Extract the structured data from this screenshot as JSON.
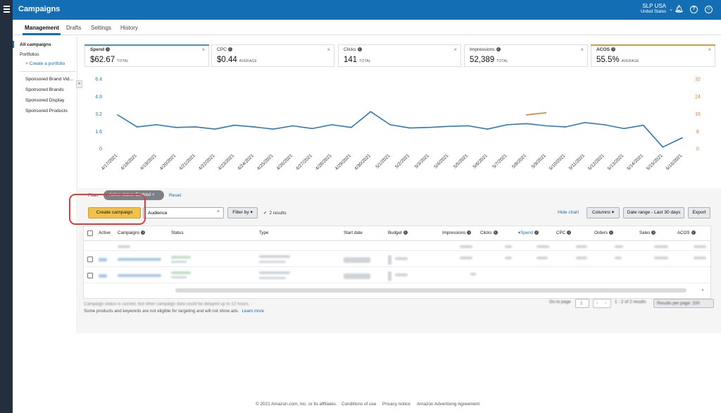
{
  "app": {
    "title": "Campaigns"
  },
  "account": {
    "name": "SLP USA",
    "region": "United States"
  },
  "tabs": [
    {
      "label": "Management"
    },
    {
      "label": "Drafts"
    },
    {
      "label": "Settings"
    },
    {
      "label": "History"
    }
  ],
  "sidebar": {
    "all_campaigns": "All campaigns",
    "portfolios": "Portfolios",
    "create_portfolio": "+ Create a portfolio",
    "items": [
      "Sponsored Brand Vid...",
      "Sponsored Brands",
      "Sponsored Display",
      "Sponsored Products"
    ]
  },
  "metrics": [
    {
      "label": "Spend",
      "value": "$62.67",
      "unit": "TOTAL",
      "color": "#1f77b4"
    },
    {
      "label": "CPC",
      "value": "$0.44",
      "unit": "AVERAGE",
      "color": ""
    },
    {
      "label": "Clicks",
      "value": "141",
      "unit": "TOTAL",
      "color": ""
    },
    {
      "label": "Impressions",
      "value": "52,389",
      "unit": "TOTAL",
      "color": ""
    },
    {
      "label": "ACOS",
      "value": "55.5%",
      "unit": "AVERAGE",
      "color": "#e07b19"
    }
  ],
  "chart_data": {
    "type": "line",
    "x": [
      "4/17/2021",
      "4/18/2021",
      "4/19/2021",
      "4/20/2021",
      "4/21/2021",
      "4/22/2021",
      "4/23/2021",
      "4/24/2021",
      "4/25/2021",
      "4/26/2021",
      "4/27/2021",
      "4/28/2021",
      "4/29/2021",
      "4/30/2021",
      "5/1/2021",
      "5/2/2021",
      "5/3/2021",
      "5/4/2021",
      "5/5/2021",
      "5/6/2021",
      "5/7/2021",
      "5/8/2021",
      "5/9/2021",
      "5/10/2021",
      "5/11/2021",
      "5/12/2021",
      "5/13/2021",
      "5/14/2021",
      "5/15/2021",
      "5/16/2021"
    ],
    "left_axis": {
      "ticks": [
        "6.4",
        "4.8",
        "3.2",
        "1.6",
        "0"
      ],
      "ylim": [
        0,
        6.4
      ],
      "color": "#1f77b4"
    },
    "right_axis": {
      "ticks": [
        "32",
        "24",
        "16",
        "8",
        "0"
      ],
      "ylim": [
        0,
        32
      ],
      "color": "#e07b19"
    },
    "series": [
      {
        "name": "Spend",
        "axis": "left",
        "color": "#2a7ab8",
        "values": [
          3.1,
          2.0,
          2.2,
          1.95,
          2.0,
          1.8,
          2.15,
          2.0,
          1.8,
          2.1,
          1.85,
          2.2,
          1.95,
          3.4,
          2.2,
          1.9,
          1.95,
          2.05,
          2.1,
          1.8,
          2.2,
          2.3,
          2.1,
          2.0,
          2.4,
          2.2,
          1.85,
          2.15,
          0.15,
          1.0
        ]
      },
      {
        "name": "ACOS",
        "axis": "right",
        "color": "#e07b19",
        "values": [
          null,
          null,
          null,
          null,
          null,
          null,
          null,
          null,
          null,
          null,
          null,
          null,
          null,
          null,
          null,
          null,
          null,
          null,
          null,
          null,
          null,
          15.5,
          16.5,
          null,
          null,
          null,
          null,
          null,
          null,
          null
        ]
      }
    ]
  },
  "toolbar": {
    "filter_label": "Filter",
    "filter_pill": "Active status: Enabled",
    "reset": "Reset",
    "create_campaign": "Create campaign",
    "search_value": "Audience",
    "filter_by": "Filter by",
    "results": "2 results",
    "hide_chart": "Hide chart",
    "columns": "Columns",
    "date_range": "Date range - Last 30 days",
    "export": "Export"
  },
  "table": {
    "headers": [
      "Active",
      "Campaigns",
      "Status",
      "Type",
      "Start date",
      "Budget",
      "Impressions",
      "Clicks",
      "Spend",
      "CPC",
      "Orders",
      "Sales",
      "ACOS"
    ]
  },
  "footnotes": {
    "line1": "Campaign status is current, but other campaign data could be delayed up to 12 hours.",
    "line2": "Some products and keywords are not eligible for targeting and will not show ads.",
    "learn_more": "Learn more"
  },
  "pager": {
    "go_to_page": "Go to page",
    "page": "1",
    "range": "1 - 2 of 2 results",
    "per_page": "Results per page: 100"
  },
  "footer": {
    "copyright": "© 2021 Amazon.com, Inc. or its affiliates.",
    "links": [
      "Conditions of use",
      "Privacy notice",
      "Amazon Advertising Agreement"
    ]
  }
}
